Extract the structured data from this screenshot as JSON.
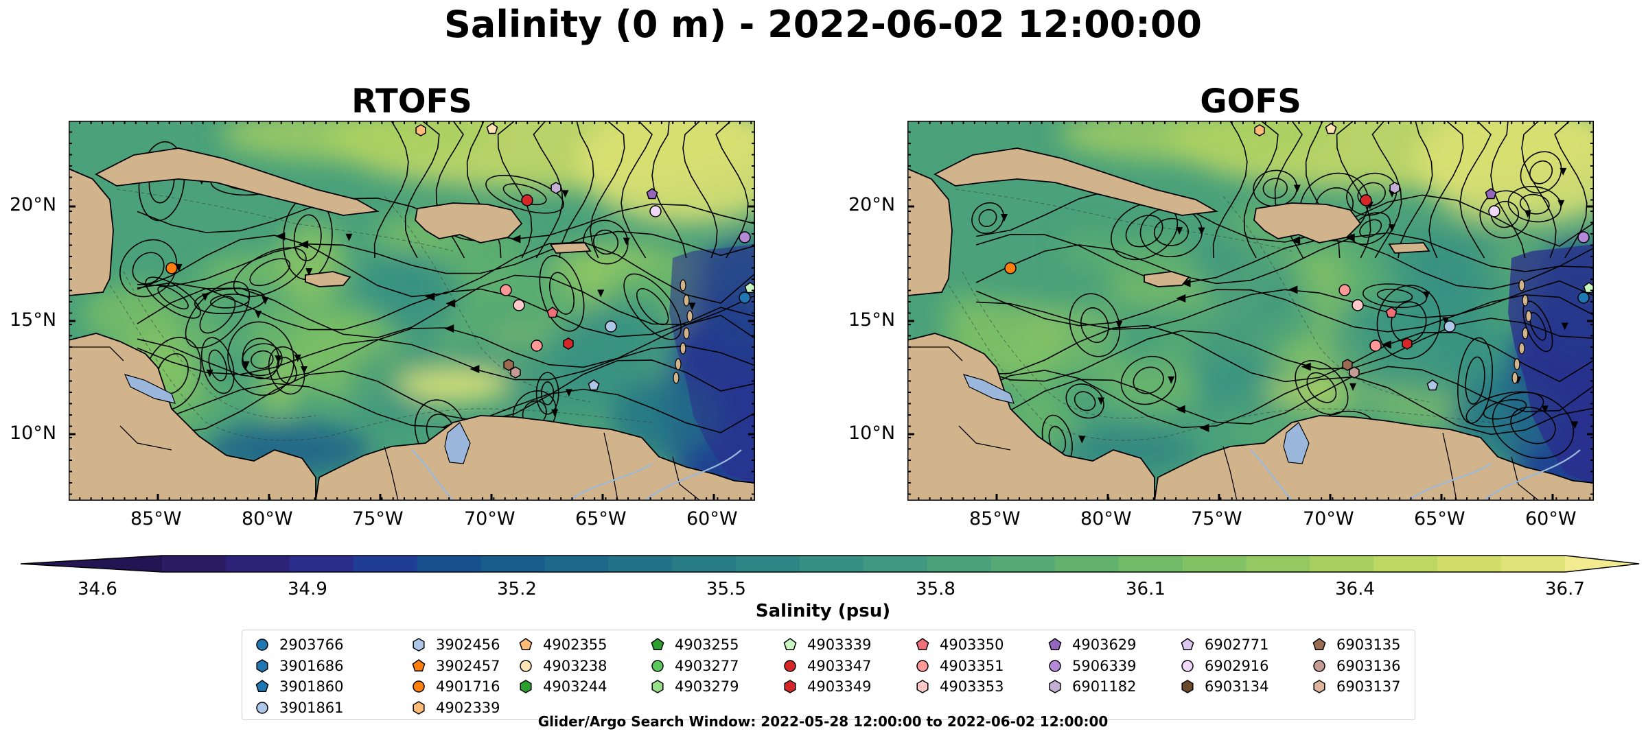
{
  "figure": {
    "suptitle": "Salinity (0 m) - 2022-06-02 12:00:00",
    "footer": "Glider/Argo Search Window: 2022-05-28 12:00:00 to 2022-06-02 12:00:00"
  },
  "panels": [
    {
      "title": "RTOFS"
    },
    {
      "title": "GOFS"
    }
  ],
  "axes": {
    "lon_ticks": [
      "85°W",
      "80°W",
      "75°W",
      "70°W",
      "65°W",
      "60°W"
    ],
    "lat_ticks": [
      "20°N",
      "15°N",
      "10°N"
    ]
  },
  "colorbar": {
    "label": "Salinity (psu)",
    "ticks": [
      "34.6",
      "34.9",
      "35.2",
      "35.5",
      "35.8",
      "36.1",
      "36.4",
      "36.7"
    ],
    "colors": [
      "#2b1c64",
      "#2d2278",
      "#2b2c8c",
      "#1f3d94",
      "#17508f",
      "#185c8c",
      "#1c688a",
      "#227288",
      "#287c86",
      "#2e8585",
      "#368f83",
      "#3f987f",
      "#4aa17a",
      "#56a974",
      "#62b26d",
      "#70ba68",
      "#80c264",
      "#94c962",
      "#a8d061",
      "#bcd762",
      "#d0dd68",
      "#e0e478"
    ],
    "under_color": "#231553",
    "over_color": "#f3eb90"
  },
  "chart_data": {
    "type": "map",
    "variable": "Salinity (psu)",
    "depth": "0 m",
    "time": "2022-06-02 12:00:00",
    "colorbar_range": [
      34.6,
      36.7
    ],
    "lon_range": [
      -89.0,
      -58.0
    ],
    "lat_range": [
      7.0,
      24.0
    ],
    "features": [
      "land",
      "streamlines",
      "contours"
    ]
  },
  "legend": {
    "columns": [
      [
        {
          "id": "2903766",
          "marker": "circle",
          "color": "#1f77b4"
        },
        {
          "id": "3901686",
          "marker": "hexagon",
          "color": "#1f77b4"
        },
        {
          "id": "3901860",
          "marker": "pentagon",
          "color": "#1f77b4"
        },
        {
          "id": "3901861",
          "marker": "circle",
          "color": "#aec7e8"
        }
      ],
      [
        {
          "id": "3902456",
          "marker": "hexagon",
          "color": "#aec7e8"
        },
        {
          "id": "3902457",
          "marker": "pentagon",
          "color": "#ff7f0e"
        },
        {
          "id": "4901716",
          "marker": "circle",
          "color": "#ff7f0e"
        },
        {
          "id": "4902339",
          "marker": "hexagon",
          "color": "#ffbb78"
        }
      ],
      [
        {
          "id": "4902355",
          "marker": "pentagon",
          "color": "#ffbb78"
        },
        {
          "id": "4903238",
          "marker": "circle",
          "color": "#ffe4b5"
        },
        {
          "id": "4903244",
          "marker": "hexagon",
          "color": "#2ca02c"
        }
      ],
      [
        {
          "id": "4903255",
          "marker": "pentagon",
          "color": "#2ca02c"
        },
        {
          "id": "4903277",
          "marker": "circle",
          "color": "#5bc85b"
        },
        {
          "id": "4903279",
          "marker": "hexagon",
          "color": "#98df8a"
        }
      ],
      [
        {
          "id": "4903339",
          "marker": "pentagon",
          "color": "#c9f5c0"
        },
        {
          "id": "4903347",
          "marker": "circle",
          "color": "#d62728"
        },
        {
          "id": "4903349",
          "marker": "hexagon",
          "color": "#d62728"
        }
      ],
      [
        {
          "id": "4903350",
          "marker": "pentagon",
          "color": "#f0707a"
        },
        {
          "id": "4903351",
          "marker": "circle",
          "color": "#ff9896"
        },
        {
          "id": "4903353",
          "marker": "hexagon",
          "color": "#ffc9c9"
        }
      ],
      [
        {
          "id": "4903629",
          "marker": "pentagon",
          "color": "#9467bd"
        },
        {
          "id": "5906339",
          "marker": "circle",
          "color": "#b48ad8"
        },
        {
          "id": "6901182",
          "marker": "hexagon",
          "color": "#c5b0d5"
        }
      ],
      [
        {
          "id": "6902771",
          "marker": "pentagon",
          "color": "#dcc8f0"
        },
        {
          "id": "6902916",
          "marker": "circle",
          "color": "#f0d8f8"
        },
        {
          "id": "6903134",
          "marker": "hexagon",
          "color": "#6b4a2b"
        }
      ],
      [
        {
          "id": "6903135",
          "marker": "pentagon",
          "color": "#9b6b52"
        },
        {
          "id": "6903136",
          "marker": "circle",
          "color": "#c49c94"
        },
        {
          "id": "6903137",
          "marker": "hexagon",
          "color": "#e0b59e"
        }
      ]
    ]
  }
}
